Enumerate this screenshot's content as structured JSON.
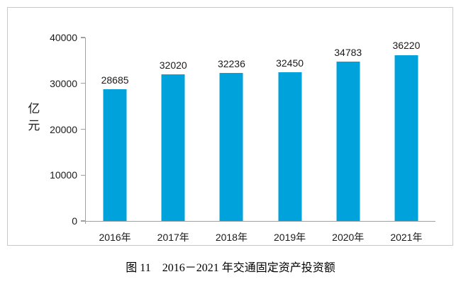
{
  "figure": {
    "caption": "图 11　2016－2021 年交通固定资产投资额"
  },
  "chart_data": {
    "type": "bar",
    "categories": [
      "2016年",
      "2017年",
      "2018年",
      "2019年",
      "2020年",
      "2021年"
    ],
    "values": [
      28685,
      32020,
      32236,
      32450,
      34783,
      36220
    ],
    "title": "",
    "xlabel": "",
    "ylabel": "亿元",
    "ylim": [
      0,
      40000
    ],
    "yticks": [
      0,
      10000,
      20000,
      30000,
      40000
    ],
    "show_value_labels": true,
    "grid": false,
    "legend": false,
    "bar_color": "#00a2dc",
    "axis_color": "#a0a0a0",
    "text_color": "#1a1a1a"
  }
}
